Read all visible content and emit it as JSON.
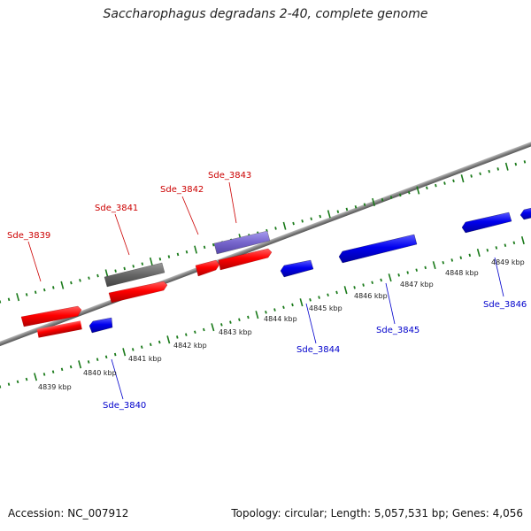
{
  "title": "Saccharophagus degradans 2-40, complete genome",
  "footer": {
    "accession": "Accession: NC_007912",
    "summary": "Topology: circular; Length: 5,057,531 bp; Genes: 4,056"
  },
  "colors": {
    "forward": "#ff0000",
    "reverse": "#0000ee",
    "other_gray": "#666666",
    "other_purple": "#7766cc",
    "backbone": "#888888",
    "ticks": "#1a7a1a",
    "label_forward": "#cc0000",
    "label_reverse": "#0000cc"
  },
  "scale": {
    "tick_labels": [
      "4839 kbp",
      "4840 kbp",
      "4841 kbp",
      "4842 kbp",
      "4843 kbp",
      "4844 kbp",
      "4845 kbp",
      "4846 kbp",
      "4847 kbp",
      "4848 kbp",
      "4849 kbp"
    ]
  },
  "genes": [
    {
      "id": "sde_3839",
      "label": "Sde_3839",
      "strand": "forward"
    },
    {
      "id": "sde_3840",
      "label": "Sde_3840",
      "strand": "reverse"
    },
    {
      "id": "sde_3841",
      "label": "Sde_3841",
      "strand": "forward"
    },
    {
      "id": "sde_3842",
      "label": "Sde_3842",
      "strand": "forward"
    },
    {
      "id": "sde_3843",
      "label": "Sde_3843",
      "strand": "forward"
    },
    {
      "id": "sde_3844",
      "label": "Sde_3844",
      "strand": "reverse"
    },
    {
      "id": "sde_3845",
      "label": "Sde_3845",
      "strand": "reverse"
    },
    {
      "id": "sde_3846",
      "label": "Sde_3846",
      "strand": "reverse"
    }
  ]
}
